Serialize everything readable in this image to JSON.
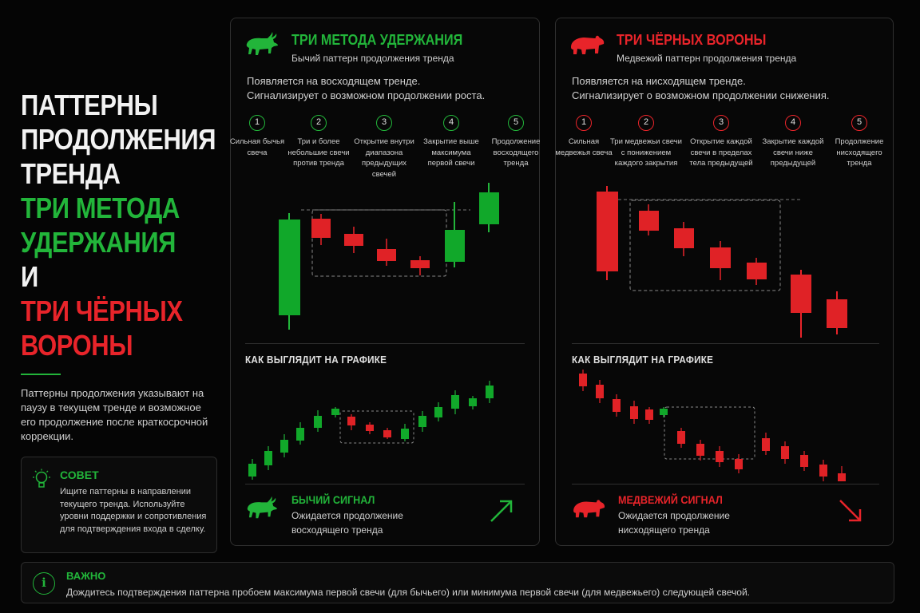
{
  "colors": {
    "green": "#22b53a",
    "red": "#e8242a",
    "background": "#050505",
    "border": "#2f2f2f"
  },
  "left": {
    "title_lines": [
      "ПАТТЕРНЫ",
      "ПРОДОЛЖЕНИЯ",
      "ТРЕНДА"
    ],
    "green_lines": [
      "ТРИ МЕТОДА",
      "УДЕРЖАНИЯ"
    ],
    "and_word": "И",
    "red_lines": [
      "ТРИ ЧЁРНЫХ",
      "ВОРОНЫ"
    ],
    "description": "Паттерны продолжения указывают на паузу в текущем тренде и возможное его продолжение после краткосрочной коррекции."
  },
  "tip": {
    "icon": "lightbulb-icon",
    "title": "СОВЕТ",
    "text": "Ищите паттерны в направлении текущего тренда. Используйте уровни поддержки и сопротивления для подтверждения входа в сделку."
  },
  "bull": {
    "icon": "bull-icon",
    "title": "ТРИ МЕТОДА УДЕРЖАНИЯ",
    "subtitle": "Бычий паттерн продолжения тренда",
    "desc_line1": "Появляется на восходящем тренде.",
    "desc_line2": "Сигнализирует о возможном продолжении роста.",
    "steps": [
      {
        "num": "1",
        "label": "Сильная бычья свеча"
      },
      {
        "num": "2",
        "label": "Три и более небольшие свечи против тренда"
      },
      {
        "num": "3",
        "label": "Открытие внутри диапазона предыдущих свечей"
      },
      {
        "num": "4",
        "label": "Закрытие выше максимума первой свечи"
      },
      {
        "num": "5",
        "label": "Продолжение восходящего тренда"
      }
    ],
    "section_title": "КАК ВЫГЛЯДИТ НА ГРАФИКЕ",
    "signal_title": "БЫЧИЙ СИГНАЛ",
    "signal_line1": "Ожидается продолжение",
    "signal_line2": "восходящего тренда",
    "arrow": "arrow-up-right-icon"
  },
  "bear": {
    "icon": "bear-icon",
    "title": "ТРИ ЧЁРНЫХ ВОРОНЫ",
    "subtitle": "Медвежий паттерн продолжения тренда",
    "desc_line1": "Появляется на нисходящем тренде.",
    "desc_line2": "Сигнализирует о возможном продолжении снижения.",
    "steps": [
      {
        "num": "1",
        "label": "Сильная медвежья свеча"
      },
      {
        "num": "2",
        "label": "Три медвежьи свечи с понижением каждого закрытия"
      },
      {
        "num": "3",
        "label": "Открытие каждой свечи в пределах тела предыдущей"
      },
      {
        "num": "4",
        "label": "Закрытие каждой свечи ниже предыдущей"
      },
      {
        "num": "5",
        "label": "Продолжение нисходящего тренда"
      }
    ],
    "section_title": "КАК ВЫГЛЯДИТ НА ГРАФИКЕ",
    "signal_title": "МЕДВЕЖИЙ СИГНАЛ",
    "signal_line1": "Ожидается продолжение",
    "signal_line2": "нисходящего тренда",
    "arrow": "arrow-down-right-icon"
  },
  "important": {
    "icon": "info-icon",
    "title": "ВАЖНО",
    "text": "Дождитесь подтверждения паттерна пробоем максимума первой свечи (для бычьего) или минимума первой свечи (для медвежьего) следующей свечой."
  }
}
